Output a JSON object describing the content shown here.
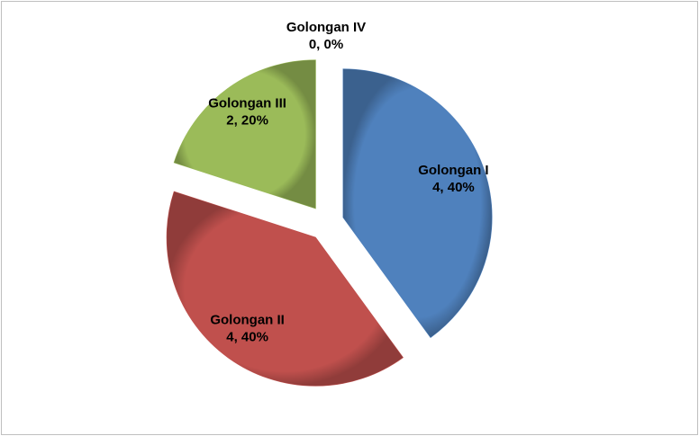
{
  "chart_data": {
    "type": "pie",
    "categories": [
      "Golongan I",
      "Golongan II",
      "Golongan III",
      "Golongan IV"
    ],
    "values": [
      4,
      4,
      2,
      0
    ],
    "value_labels": [
      "4, 40%",
      "4, 40%",
      "2, 20%",
      "0, 0%"
    ],
    "colors": [
      "#4f81bd",
      "#c0504d",
      "#9bbb59",
      "#8064a2"
    ]
  }
}
